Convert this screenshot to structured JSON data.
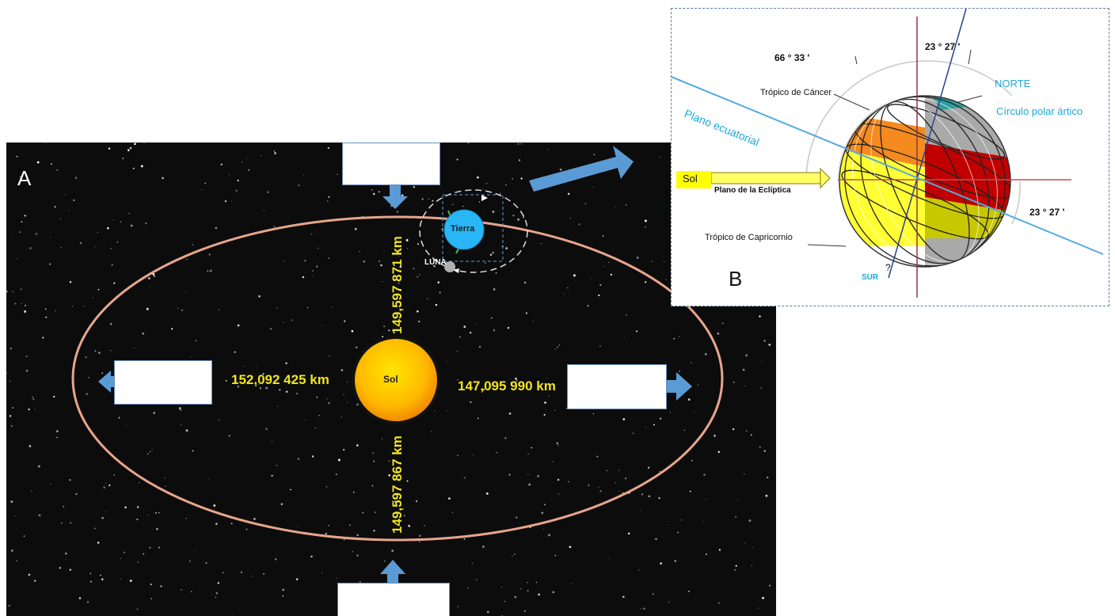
{
  "panel_a": {
    "letter": "A",
    "sun_label": "Sol",
    "earth_label": "Tierra",
    "moon_label": "LUNA",
    "dist_left": "152,092 425 km",
    "dist_right": "147,095 990 km",
    "dist_top": "149,597 871 km",
    "dist_bottom": "149,597 867 km"
  },
  "panel_b": {
    "letter": "B",
    "angle_66": "66 ° 33 '",
    "angle_23_top": "23 ° 27 '",
    "angle_23_right": "23 ° 27 '",
    "norte": "NORTE",
    "circulo_polar": "Círculo polar ártico",
    "tropico_cancer": "Trópico de Cáncer",
    "plano_ecuatorial": "Plano ecuatorial",
    "sol": "Sol",
    "plano_ecliptica": "Plano de la Eclíptica",
    "tropico_capricornio": "Trópico de Capricornio",
    "sur": "SUR",
    "question": "?"
  },
  "colors": {
    "orbit": "#e8a58c",
    "arrow": "#5b9bd5",
    "sun": "#ffc000",
    "earth": "#29b6f6",
    "distance_text": "#f2e51b"
  }
}
